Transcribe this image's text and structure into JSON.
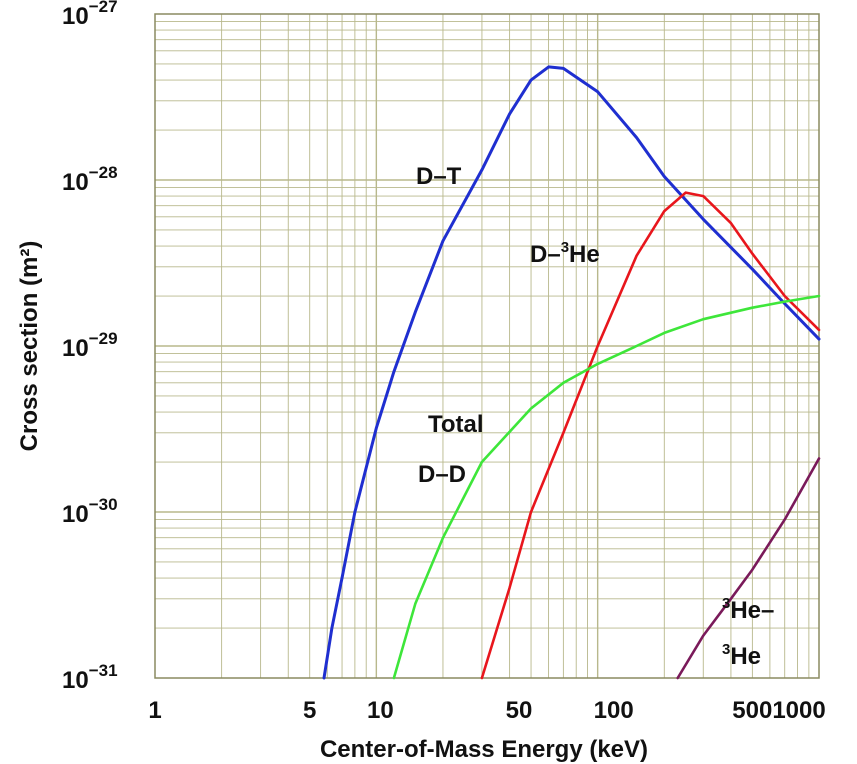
{
  "chart_data": {
    "type": "line",
    "x_scale": "log",
    "y_scale": "log",
    "xlim": [
      1,
      1000
    ],
    "ylim": [
      1e-31,
      1e-27
    ],
    "grid": true,
    "xlabel": "Center-of-Mass Energy (keV)",
    "ylabel": "Cross section (m²)",
    "x_ticks": [
      "1",
      "5",
      "10",
      "50",
      "100",
      "5001000"
    ],
    "y_ticks": [
      {
        "base": "10",
        "exp": "−27",
        "value": 1e-27
      },
      {
        "base": "10",
        "exp": "−28",
        "value": 1e-28
      },
      {
        "base": "10",
        "exp": "−29",
        "value": 1e-29
      },
      {
        "base": "10",
        "exp": "−30",
        "value": 1e-30
      },
      {
        "base": "10",
        "exp": "−31",
        "value": 1e-31
      }
    ],
    "series": [
      {
        "name": "D–T",
        "color": "#1f2fd0",
        "points": [
          [
            5.8,
            1e-31
          ],
          [
            6.3,
            2e-31
          ],
          [
            7,
            4e-31
          ],
          [
            8,
            1e-30
          ],
          [
            10,
            3.2e-30
          ],
          [
            12,
            7e-30
          ],
          [
            15,
            1.6e-29
          ],
          [
            20,
            4.3e-29
          ],
          [
            30,
            1.15e-28
          ],
          [
            40,
            2.5e-28
          ],
          [
            50,
            4e-28
          ],
          [
            60,
            4.8e-28
          ],
          [
            70,
            4.7e-28
          ],
          [
            100,
            3.4e-28
          ],
          [
            150,
            1.8e-28
          ],
          [
            200,
            1.05e-28
          ],
          [
            300,
            5.8e-29
          ],
          [
            500,
            2.9e-29
          ],
          [
            700,
            1.8e-29
          ],
          [
            1000,
            1.1e-29
          ]
        ]
      },
      {
        "name": "D–³He",
        "color": "#e8161c",
        "points": [
          [
            30,
            1e-31
          ],
          [
            40,
            3.5e-31
          ],
          [
            50,
            1e-30
          ],
          [
            70,
            3e-30
          ],
          [
            100,
            1e-29
          ],
          [
            150,
            3.5e-29
          ],
          [
            200,
            6.5e-29
          ],
          [
            250,
            8.4e-29
          ],
          [
            300,
            8e-29
          ],
          [
            400,
            5.5e-29
          ],
          [
            500,
            3.6e-29
          ],
          [
            700,
            2e-29
          ],
          [
            1000,
            1.25e-29
          ]
        ]
      },
      {
        "name": "Total D–D",
        "color": "#3ee63a",
        "points": [
          [
            12,
            1e-31
          ],
          [
            15,
            2.8e-31
          ],
          [
            20,
            7e-31
          ],
          [
            30,
            2e-30
          ],
          [
            50,
            4.2e-30
          ],
          [
            70,
            6e-30
          ],
          [
            100,
            7.8e-30
          ],
          [
            150,
            1e-29
          ],
          [
            200,
            1.2e-29
          ],
          [
            300,
            1.45e-29
          ],
          [
            500,
            1.7e-29
          ],
          [
            700,
            1.85e-29
          ],
          [
            1000,
            2e-29
          ]
        ]
      },
      {
        "name": "³He–³He",
        "color": "#7a1a5a",
        "points": [
          [
            230,
            1e-31
          ],
          [
            300,
            1.8e-31
          ],
          [
            400,
            3e-31
          ],
          [
            500,
            4.5e-31
          ],
          [
            700,
            9e-31
          ],
          [
            1000,
            2.1e-30
          ]
        ]
      }
    ],
    "curve_labels": [
      {
        "id": "dt",
        "text": "D–T"
      },
      {
        "id": "dhe3",
        "text": "D–",
        "sup": "3",
        "text2": "He"
      },
      {
        "id": "dd1",
        "text": "Total"
      },
      {
        "id": "dd2",
        "text": "D–D"
      },
      {
        "id": "he3a",
        "sup": "3",
        "text2": "He–"
      },
      {
        "id": "he3b",
        "sup": "3",
        "text2": "He"
      }
    ]
  }
}
